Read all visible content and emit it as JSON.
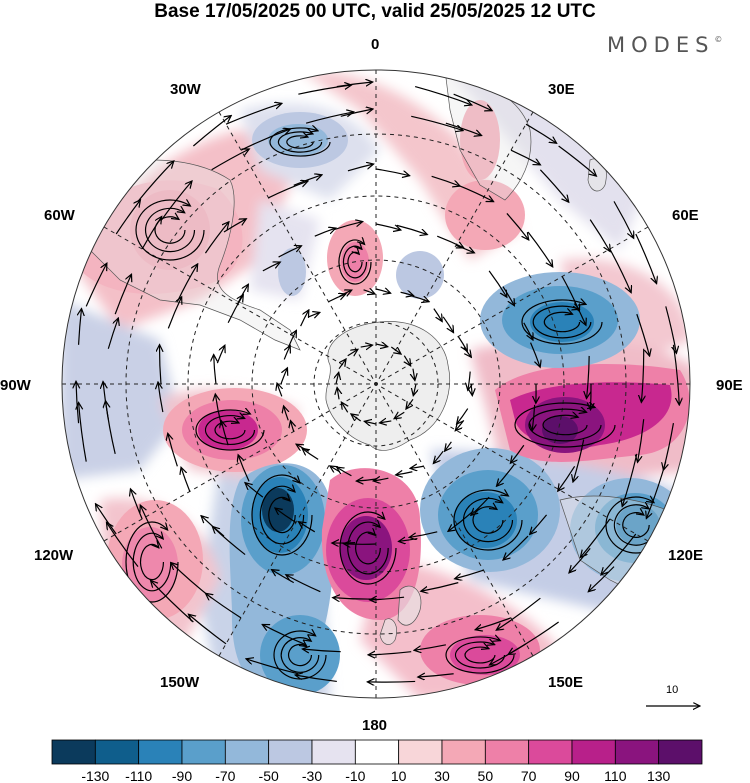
{
  "header": {
    "title": "Base 17/05/2025 00 UTC, valid 25/05/2025 12 UTC",
    "brand": "MODES",
    "brand_mark": "©"
  },
  "longitude_labels": {
    "n": "0",
    "ne": "30E",
    "e1": "60E",
    "e": "90E",
    "e2": "120E",
    "se": "150E",
    "s": "180",
    "sw": "150W",
    "w2": "120W",
    "w": "90W",
    "w1": "60W",
    "nw": "30W"
  },
  "reference_vector": {
    "label": "10"
  },
  "colorbar": {
    "ticks": [
      "-130",
      "-110",
      "-90",
      "-70",
      "-50",
      "-30",
      "-10",
      "10",
      "30",
      "50",
      "70",
      "90",
      "110",
      "130"
    ],
    "colors": [
      "#0b3a5c",
      "#0f5e8c",
      "#2a82b8",
      "#5a9fcb",
      "#93b8da",
      "#bcc8e2",
      "#e6e3f0",
      "#ffffff",
      "#f8d6d9",
      "#f4a8b6",
      "#ee80a8",
      "#db4a9b",
      "#b8208a",
      "#8a147e",
      "#5c0f6a"
    ]
  },
  "map": {
    "land_color": "#e6e6e6",
    "ocean_outline": "#444444"
  }
}
